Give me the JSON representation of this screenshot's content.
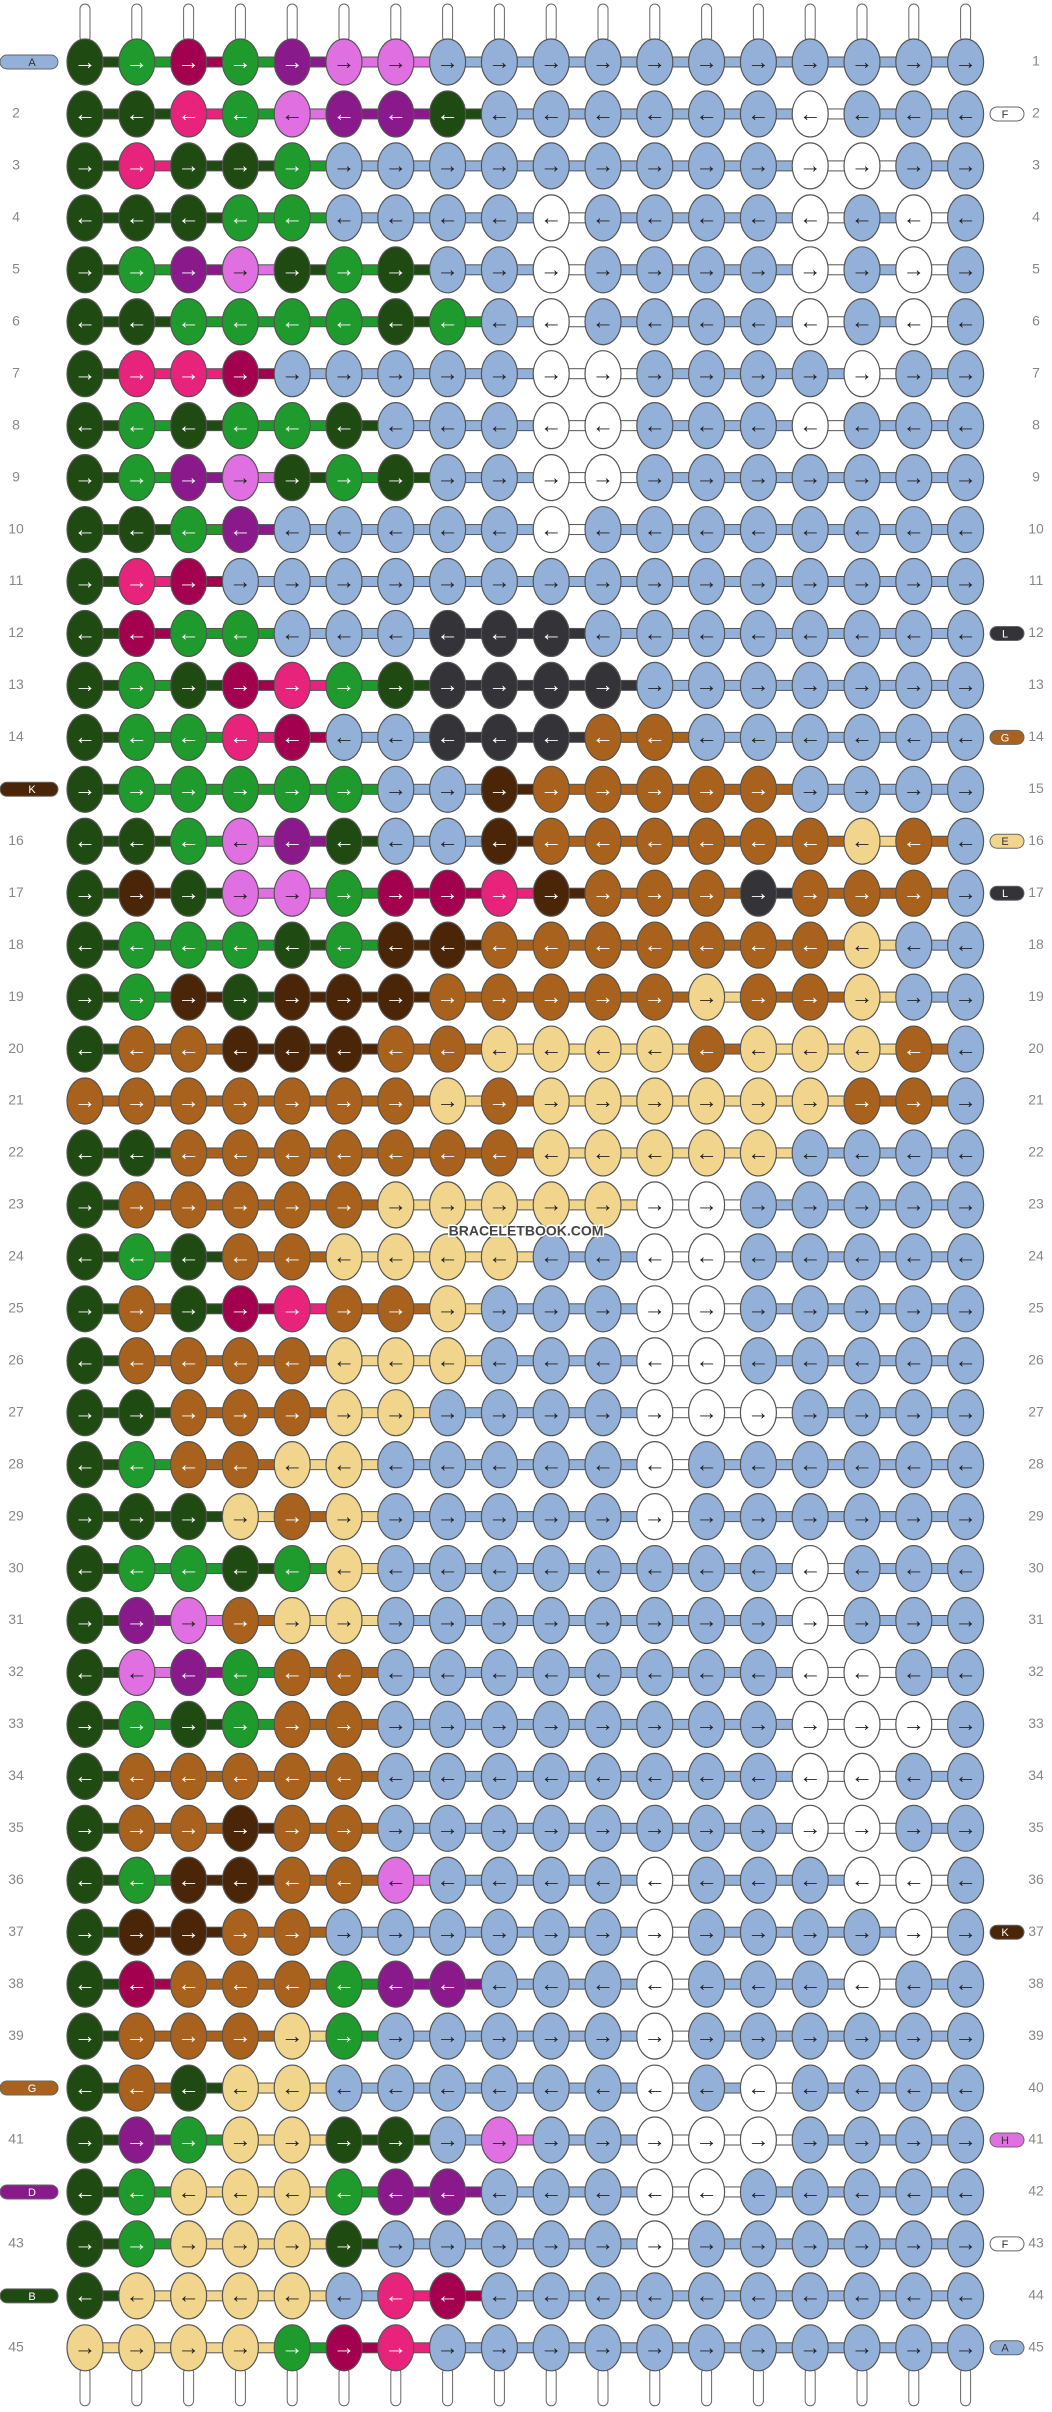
{
  "watermark": "BRACELETBOOK.COM",
  "palette": {
    "D": "#1f4a12",
    "G": "#1f9a2c",
    "M": "#a3004f",
    "P": "#e8237c",
    "V": "#8a1a8c",
    "L": "#e070e2",
    "b": "#92b0d8",
    "w": "#ffffff",
    "k": "#333338",
    "n": "#a8621e",
    "c": "#4a2508",
    "y": "#f2d58c"
  },
  "rows": [
    {
      "number": 1,
      "arrow": "→",
      "knots": "DGMGVLLbbbbbbbbbbb",
      "left": {
        "label": "A",
        "color": "b"
      }
    },
    {
      "number": 2,
      "arrow": "←",
      "knots": "DDPGLVVDbbbbbbwbbb",
      "right": {
        "label": "F",
        "color": "w"
      }
    },
    {
      "number": 3,
      "arrow": "→",
      "knots": "DPDDGbbbbbbbbbwwbb"
    },
    {
      "number": 4,
      "arrow": "←",
      "knots": "DDDGGbbbbwbbbbwbwb"
    },
    {
      "number": 5,
      "arrow": "→",
      "knots": "DGVLDGDbbwbbbbwbwb"
    },
    {
      "number": 6,
      "arrow": "←",
      "knots": "DDGGGGDGbwbbbbwbwb"
    },
    {
      "number": 7,
      "arrow": "→",
      "knots": "DPPMbbbbbwwbbbbwbb"
    },
    {
      "number": 8,
      "arrow": "←",
      "knots": "DGDGGDbbbwwbbbwbbb"
    },
    {
      "number": 9,
      "arrow": "→",
      "knots": "DGVLDGDbbwwbbbbbbb"
    },
    {
      "number": 10,
      "arrow": "←",
      "knots": "DDGVbbbbbwbbbbbbbb"
    },
    {
      "number": 11,
      "arrow": "→",
      "knots": "DPMbbbbbbbbbbbbbbb"
    },
    {
      "number": 12,
      "arrow": "←",
      "knots": "DMGGbbbkkkbbbbbbbb",
      "right": {
        "label": "L",
        "color": "k"
      }
    },
    {
      "number": 13,
      "arrow": "→",
      "knots": "DGDMPGDkkkkbbbbbbb"
    },
    {
      "number": 14,
      "arrow": "←",
      "knots": "DGGPMbbkkknnbbbbbb",
      "right": {
        "label": "G",
        "color": "n"
      }
    },
    {
      "number": 15,
      "arrow": "→",
      "knots": "DGGGGGbbcnnnnnbbbb",
      "left": {
        "label": "K",
        "color": "c"
      }
    },
    {
      "number": 16,
      "arrow": "←",
      "knots": "DDGLVDbbcnnnnnnynb",
      "right": {
        "label": "E",
        "color": "y"
      }
    },
    {
      "number": 17,
      "arrow": "→",
      "knots": "DcDLLGMMPcnnnknnnb",
      "right": {
        "label": "L",
        "color": "k"
      }
    },
    {
      "number": 18,
      "arrow": "←",
      "knots": "DGGGDGccnnnnnnnybb"
    },
    {
      "number": 19,
      "arrow": "→",
      "knots": "DGcDcccnnnnnynnybb"
    },
    {
      "number": 20,
      "arrow": "←",
      "knots": "Dnncccnnyyyynyyynb"
    },
    {
      "number": 21,
      "arrow": "→",
      "knots": "nnnnnnnynyyyyyynnb"
    },
    {
      "number": 22,
      "arrow": "←",
      "knots": "DDnnnnnnnyyyyybbbb"
    },
    {
      "number": 23,
      "arrow": "→",
      "knots": "Dnnnnnyyyyywwbbbbb"
    },
    {
      "number": 24,
      "arrow": "←",
      "knots": "DGDnnyyyybbwwbbbbb"
    },
    {
      "number": 25,
      "arrow": "→",
      "knots": "DnDMPnnybbbwwbbbbb"
    },
    {
      "number": 26,
      "arrow": "←",
      "knots": "Dnnnnyyybbbwwbbbbb"
    },
    {
      "number": 27,
      "arrow": "→",
      "knots": "DDnnnyybbbbwwwbbbb"
    },
    {
      "number": 28,
      "arrow": "←",
      "knots": "DGnnyybbbbbwbbbbbb"
    },
    {
      "number": 29,
      "arrow": "→",
      "knots": "DDDynybbbbbwbbbbbb"
    },
    {
      "number": 30,
      "arrow": "←",
      "knots": "DGGDGybbbbbbbbwbbb"
    },
    {
      "number": 31,
      "arrow": "→",
      "knots": "DVLnyybbbbbbbbwbbb"
    },
    {
      "number": 32,
      "arrow": "←",
      "knots": "DLVGnnbbbbbbbbwwbb"
    },
    {
      "number": 33,
      "arrow": "→",
      "knots": "DGDGnnbbbbbbbbwwwb"
    },
    {
      "number": 34,
      "arrow": "←",
      "knots": "Dnnnnnbbbbbbbbwwbb"
    },
    {
      "number": 35,
      "arrow": "→",
      "knots": "Dnncnnbbbbbbbbwwbb"
    },
    {
      "number": 36,
      "arrow": "←",
      "knots": "DGccnnLbbbbwbbbwwb"
    },
    {
      "number": 37,
      "arrow": "→",
      "knots": "Dccnnbbbbbbwbbbbwb",
      "right": {
        "label": "K",
        "color": "c"
      }
    },
    {
      "number": 38,
      "arrow": "←",
      "knots": "DMnnnGVVbbbwbbbwbb"
    },
    {
      "number": 39,
      "arrow": "→",
      "knots": "DnnnyGbbbbbwbbbbbb"
    },
    {
      "number": 40,
      "arrow": "←",
      "knots": "DnDyybbbbbbwbwbbbb",
      "left": {
        "label": "G",
        "color": "n"
      }
    },
    {
      "number": 41,
      "arrow": "→",
      "knots": "DVGyyDDbLbbwwwbbbb",
      "right": {
        "label": "H",
        "color": "L"
      }
    },
    {
      "number": 42,
      "arrow": "←",
      "knots": "DGyyyGVVbbbwwbbbbb",
      "left": {
        "label": "D",
        "color": "V"
      }
    },
    {
      "number": 43,
      "arrow": "→",
      "knots": "DGyyyDbbbbbwbbbbbb",
      "right": {
        "label": "F",
        "color": "w"
      }
    },
    {
      "number": 44,
      "arrow": "←",
      "knots": "DyyyybPMbbbbbbbbbb",
      "left": {
        "label": "B",
        "color": "D"
      }
    },
    {
      "number": 45,
      "arrow": "→",
      "knots": "yyyyGMPbbbbbbbbbbb",
      "right": {
        "label": "A",
        "color": "b"
      }
    }
  ]
}
